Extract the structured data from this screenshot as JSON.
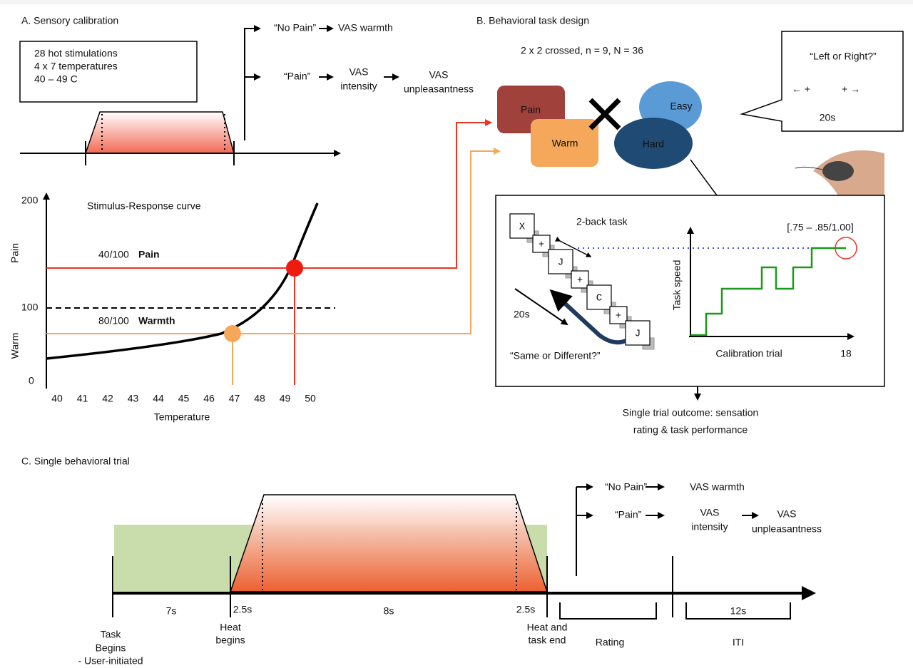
{
  "panel_a": {
    "title": "A. Sensory calibration",
    "stimulation_box": [
      "28 hot stimulations",
      "4 x 7 temperatures",
      "40 – 49 C"
    ],
    "no_pain_branch": {
      "label": "“No Pain”",
      "outcome": "VAS warmth"
    },
    "pain_branch": {
      "label": "“Pain”",
      "intensity": [
        "VAS",
        "intensity"
      ],
      "unpleasantness": [
        "VAS",
        "unpleasantness"
      ]
    },
    "curve": {
      "title": "Stimulus-Response curve",
      "y_labels": [
        "200",
        "100",
        "0"
      ],
      "y_axis_labels": [
        "Pain",
        "Warm"
      ],
      "pain_level": {
        "rating": "40/100",
        "label": "Pain"
      },
      "warmth_level": {
        "rating": "80/100",
        "label": "Warmth"
      },
      "x_ticks": [
        "40",
        "41",
        "42",
        "43",
        "44",
        "45",
        "46",
        "47",
        "48",
        "49",
        "50"
      ],
      "x_label": "Temperature"
    }
  },
  "panel_b": {
    "title": "B. Behavioral task design",
    "design": "2 x 2 crossed, n = 9, N = 36",
    "conditions": [
      "Pain",
      "Warm",
      "Easy",
      "Hard"
    ],
    "prompt": {
      "question": "“Left or Right?”",
      "left": "← +",
      "right": "+ →",
      "duration": "20s"
    },
    "nback": {
      "title": "2-back task",
      "cards": [
        "X",
        "+",
        "J",
        "+",
        "C",
        "+",
        "J"
      ],
      "duration": "20s",
      "question": "“Same or Different?”"
    },
    "calibration": {
      "target": "[.75 – .85/1.00]",
      "y_label": "Task speed",
      "x_label": "Calibration trial",
      "x_end": "18"
    },
    "outcome": [
      "Single trial outcome: sensation",
      "rating & task performance"
    ]
  },
  "panel_c": {
    "title": "C. Single behavioral trial",
    "no_pain_branch": {
      "label": "“No Pain”",
      "outcome": "VAS warmth"
    },
    "pain_branch": {
      "label": "“Pain”",
      "intensity": [
        "VAS",
        "intensity"
      ],
      "unpleasantness": [
        "VAS",
        "unpleasantness"
      ]
    },
    "durations": [
      "7s",
      "2.5s",
      "8s",
      "2.5s",
      "12s"
    ],
    "events": {
      "task_begins": [
        "Task",
        "Begins",
        "- User-initiated"
      ],
      "heat_begins": [
        "Heat",
        "begins"
      ],
      "heat_end": [
        "Heat and",
        "task end"
      ],
      "rating": "Rating",
      "iti": "ITI"
    }
  }
}
